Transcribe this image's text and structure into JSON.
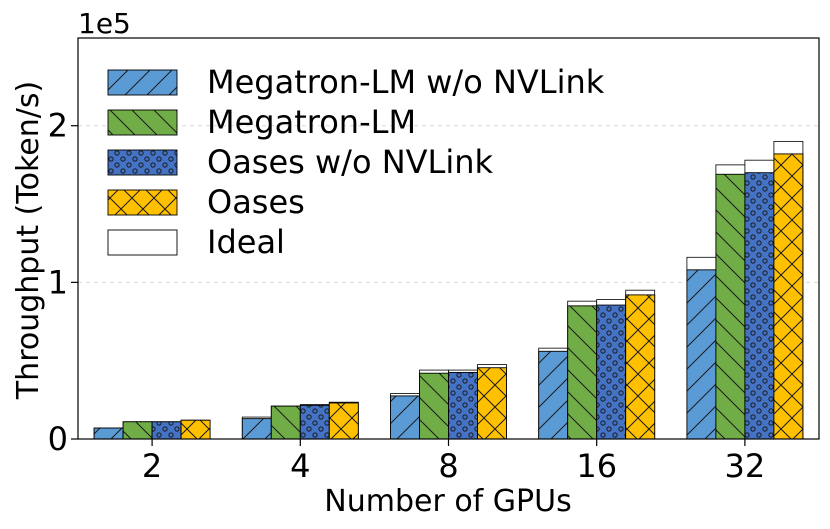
{
  "chart_data": {
    "type": "bar",
    "title": "",
    "xlabel": "Number of GPUs",
    "ylabel": "Throughput (Token/s)",
    "y_multiplier_label": "1e5",
    "ylim": [
      0,
      2.56
    ],
    "y_ticks": [
      0,
      1,
      2
    ],
    "y_tick_labels": [
      "0",
      "1",
      "2"
    ],
    "grid": "horizontal dashed",
    "legend_position": "top-left",
    "categories": [
      "2",
      "4",
      "8",
      "16",
      "32"
    ],
    "series": [
      {
        "name": "Megatron-LM w/o NVLink",
        "values": [
          0.07,
          0.13,
          0.275,
          0.56,
          1.08
        ],
        "ideal": [
          0.07,
          0.14,
          0.29,
          0.58,
          1.16
        ],
        "color": "#5b9bd5",
        "pattern": "diag-forward"
      },
      {
        "name": "Megatron-LM",
        "values": [
          0.11,
          0.21,
          0.42,
          0.85,
          1.69
        ],
        "ideal": [
          0.11,
          0.21,
          0.44,
          0.88,
          1.75
        ],
        "color": "#70ad47",
        "pattern": "diag-backward"
      },
      {
        "name": "Oases w/o NVLink",
        "values": [
          0.11,
          0.215,
          0.425,
          0.855,
          1.7
        ],
        "ideal": [
          0.11,
          0.22,
          0.44,
          0.89,
          1.78
        ],
        "color": "#4472c4",
        "pattern": "dots"
      },
      {
        "name": "Oases",
        "values": [
          0.12,
          0.23,
          0.455,
          0.92,
          1.82
        ],
        "ideal": [
          0.12,
          0.235,
          0.475,
          0.95,
          1.9
        ],
        "color": "#ffc000",
        "pattern": "cross"
      }
    ],
    "ideal_label": "Ideal"
  }
}
